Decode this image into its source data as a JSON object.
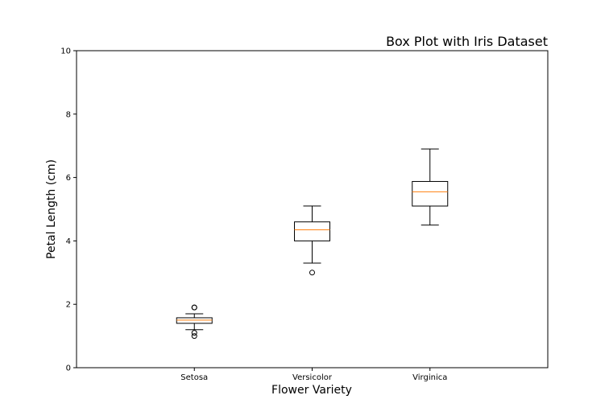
{
  "chart_data": {
    "type": "box",
    "title": "Box Plot with Iris Dataset",
    "xlabel": "Flower Variety",
    "ylabel": "Petal Length (cm)",
    "ylim": [
      0,
      10
    ],
    "yticks": [
      "0",
      "2",
      "4",
      "6",
      "8",
      "10"
    ],
    "grid": false,
    "categories": [
      "Setosa",
      "Versicolor",
      "Virginica"
    ],
    "boxes": [
      {
        "whisker_low": 1.2,
        "q1": 1.4,
        "median": 1.5,
        "q3": 1.575,
        "whisker_high": 1.7,
        "outliers": [
          1.0,
          1.1,
          1.9,
          1.9
        ]
      },
      {
        "whisker_low": 3.3,
        "q1": 4.0,
        "median": 4.35,
        "q3": 4.6,
        "whisker_high": 5.1,
        "outliers": [
          3.0
        ]
      },
      {
        "whisker_low": 4.5,
        "q1": 5.1,
        "median": 5.55,
        "q3": 5.875,
        "whisker_high": 6.9,
        "outliers": []
      }
    ],
    "colors": {
      "box": "#000000",
      "median": "#ff7f0e",
      "outlier_edge": "#000000"
    }
  }
}
